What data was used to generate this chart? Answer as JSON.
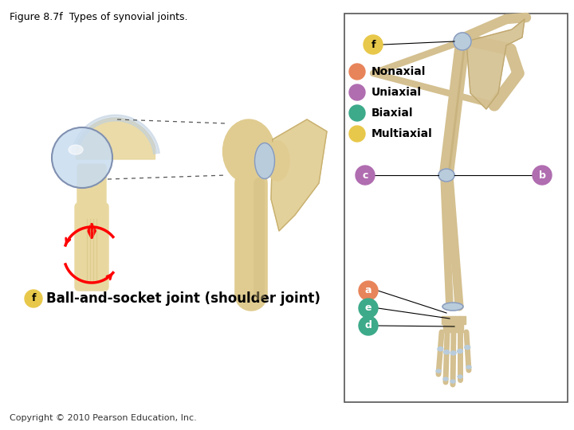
{
  "title": "Figure 8.7f  Types of synovial joints.",
  "title_fontsize": 9,
  "copyright": "Copyright © 2010 Pearson Education, Inc.",
  "copyright_fontsize": 8,
  "legend_items": [
    {
      "label": "Nonaxial",
      "color": "#E8845A"
    },
    {
      "label": "Uniaxial",
      "color": "#B06DB0"
    },
    {
      "label": "Biaxial",
      "color": "#3DAA8A"
    },
    {
      "label": "Multiaxial",
      "color": "#E8C84A"
    }
  ],
  "bone_color": "#D4C090",
  "bone_dark": "#C0A870",
  "cartilage_color": "#B8CCDC",
  "badge_f_color": "#E8C84A",
  "badge_c_color": "#B06DB0",
  "badge_b_color": "#B06DB0",
  "badge_a_color": "#E8845A",
  "badge_e_color": "#3DAA8A",
  "badge_d_color": "#3DAA8A",
  "background_color": "#ffffff",
  "box_edge_color": "#555555"
}
